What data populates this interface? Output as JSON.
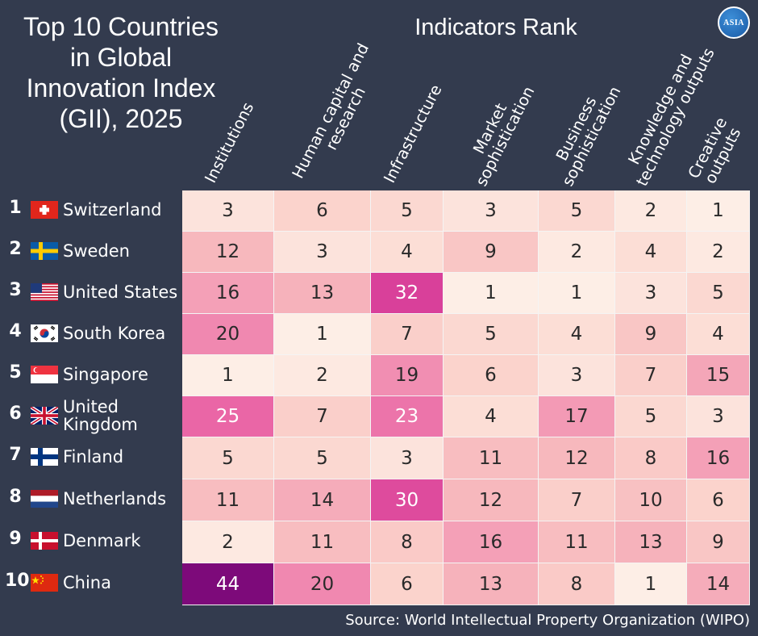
{
  "header": {
    "title_lines": [
      "Top 10 Countries",
      "in Global",
      "Innovation Index",
      "(GII), 2025"
    ],
    "subtitle": "Indicators Rank",
    "logo_text": "ASIA"
  },
  "footer": {
    "source": "Source: World Intellectual Property Organization (WIPO)"
  },
  "chart_data": {
    "type": "heatmap",
    "title": "Top 10 Countries in Global Innovation Index (GII), 2025",
    "subtitle": "Indicators Rank",
    "columns": [
      [
        "Institutions"
      ],
      [
        "Human capital and",
        "research"
      ],
      [
        "Infrastructure"
      ],
      [
        "Market",
        "sophistication"
      ],
      [
        "Business",
        "sophistication"
      ],
      [
        "Knowledge and",
        "technology outputs"
      ],
      [
        "Creative",
        "outputs"
      ]
    ],
    "rows": [
      {
        "rank": "1",
        "country": [
          "Switzerland"
        ],
        "flag": "switzerland-flag-icon",
        "values": [
          3,
          6,
          5,
          3,
          5,
          2,
          1
        ]
      },
      {
        "rank": "2",
        "country": [
          "Sweden"
        ],
        "flag": "sweden-flag-icon",
        "values": [
          12,
          3,
          4,
          9,
          2,
          4,
          2
        ]
      },
      {
        "rank": "3",
        "country": [
          "United States"
        ],
        "flag": "united-states-flag-icon",
        "values": [
          16,
          13,
          32,
          1,
          1,
          3,
          5
        ]
      },
      {
        "rank": "4",
        "country": [
          "South Korea"
        ],
        "flag": "south-korea-flag-icon",
        "values": [
          20,
          1,
          7,
          5,
          4,
          9,
          4
        ]
      },
      {
        "rank": "5",
        "country": [
          "Singapore"
        ],
        "flag": "singapore-flag-icon",
        "values": [
          1,
          2,
          19,
          6,
          3,
          7,
          15
        ]
      },
      {
        "rank": "6",
        "country": [
          "United",
          "Kingdom"
        ],
        "flag": "united-kingdom-flag-icon",
        "values": [
          25,
          7,
          23,
          4,
          17,
          5,
          3
        ]
      },
      {
        "rank": "7",
        "country": [
          "Finland"
        ],
        "flag": "finland-flag-icon",
        "values": [
          5,
          5,
          3,
          11,
          12,
          8,
          16
        ]
      },
      {
        "rank": "8",
        "country": [
          "Netherlands"
        ],
        "flag": "netherlands-flag-icon",
        "values": [
          11,
          14,
          30,
          12,
          7,
          10,
          6
        ]
      },
      {
        "rank": "9",
        "country": [
          "Denmark"
        ],
        "flag": "denmark-flag-icon",
        "values": [
          2,
          11,
          8,
          16,
          11,
          13,
          9
        ]
      },
      {
        "rank": "10",
        "country": [
          "China"
        ],
        "flag": "china-flag-icon",
        "values": [
          44,
          20,
          6,
          13,
          8,
          1,
          14
        ]
      }
    ],
    "color_scale": [
      "#fdf0ea",
      "#f8c3c6",
      "#f29bb5",
      "#e0489a",
      "#8a0a7d"
    ]
  }
}
